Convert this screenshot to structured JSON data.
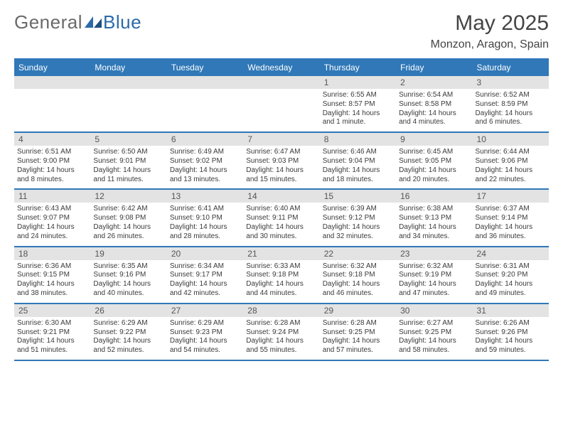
{
  "logo": {
    "text_general": "General",
    "text_blue": "Blue"
  },
  "header": {
    "title": "May 2025",
    "location": "Monzon, Aragon, Spain"
  },
  "colors": {
    "header_bar": "#3078b8",
    "daynum_bg": "#e3e3e3",
    "text": "#3a3a3a",
    "title_text": "#444444",
    "logo_gray": "#6a6a6a",
    "logo_blue": "#2b6aa8",
    "white": "#ffffff"
  },
  "typography": {
    "title_fontsize": 30,
    "subtitle_fontsize": 16,
    "weekday_fontsize": 12,
    "daynum_fontsize": 12,
    "body_fontsize": 10
  },
  "weekdays": [
    "Sunday",
    "Monday",
    "Tuesday",
    "Wednesday",
    "Thursday",
    "Friday",
    "Saturday"
  ],
  "weeks": [
    [
      {
        "empty": true
      },
      {
        "empty": true
      },
      {
        "empty": true
      },
      {
        "empty": true
      },
      {
        "day": "1",
        "sunrise": "Sunrise: 6:55 AM",
        "sunset": "Sunset: 8:57 PM",
        "daylight": "Daylight: 14 hours and 1 minute."
      },
      {
        "day": "2",
        "sunrise": "Sunrise: 6:54 AM",
        "sunset": "Sunset: 8:58 PM",
        "daylight": "Daylight: 14 hours and 4 minutes."
      },
      {
        "day": "3",
        "sunrise": "Sunrise: 6:52 AM",
        "sunset": "Sunset: 8:59 PM",
        "daylight": "Daylight: 14 hours and 6 minutes."
      }
    ],
    [
      {
        "day": "4",
        "sunrise": "Sunrise: 6:51 AM",
        "sunset": "Sunset: 9:00 PM",
        "daylight": "Daylight: 14 hours and 8 minutes."
      },
      {
        "day": "5",
        "sunrise": "Sunrise: 6:50 AM",
        "sunset": "Sunset: 9:01 PM",
        "daylight": "Daylight: 14 hours and 11 minutes."
      },
      {
        "day": "6",
        "sunrise": "Sunrise: 6:49 AM",
        "sunset": "Sunset: 9:02 PM",
        "daylight": "Daylight: 14 hours and 13 minutes."
      },
      {
        "day": "7",
        "sunrise": "Sunrise: 6:47 AM",
        "sunset": "Sunset: 9:03 PM",
        "daylight": "Daylight: 14 hours and 15 minutes."
      },
      {
        "day": "8",
        "sunrise": "Sunrise: 6:46 AM",
        "sunset": "Sunset: 9:04 PM",
        "daylight": "Daylight: 14 hours and 18 minutes."
      },
      {
        "day": "9",
        "sunrise": "Sunrise: 6:45 AM",
        "sunset": "Sunset: 9:05 PM",
        "daylight": "Daylight: 14 hours and 20 minutes."
      },
      {
        "day": "10",
        "sunrise": "Sunrise: 6:44 AM",
        "sunset": "Sunset: 9:06 PM",
        "daylight": "Daylight: 14 hours and 22 minutes."
      }
    ],
    [
      {
        "day": "11",
        "sunrise": "Sunrise: 6:43 AM",
        "sunset": "Sunset: 9:07 PM",
        "daylight": "Daylight: 14 hours and 24 minutes."
      },
      {
        "day": "12",
        "sunrise": "Sunrise: 6:42 AM",
        "sunset": "Sunset: 9:08 PM",
        "daylight": "Daylight: 14 hours and 26 minutes."
      },
      {
        "day": "13",
        "sunrise": "Sunrise: 6:41 AM",
        "sunset": "Sunset: 9:10 PM",
        "daylight": "Daylight: 14 hours and 28 minutes."
      },
      {
        "day": "14",
        "sunrise": "Sunrise: 6:40 AM",
        "sunset": "Sunset: 9:11 PM",
        "daylight": "Daylight: 14 hours and 30 minutes."
      },
      {
        "day": "15",
        "sunrise": "Sunrise: 6:39 AM",
        "sunset": "Sunset: 9:12 PM",
        "daylight": "Daylight: 14 hours and 32 minutes."
      },
      {
        "day": "16",
        "sunrise": "Sunrise: 6:38 AM",
        "sunset": "Sunset: 9:13 PM",
        "daylight": "Daylight: 14 hours and 34 minutes."
      },
      {
        "day": "17",
        "sunrise": "Sunrise: 6:37 AM",
        "sunset": "Sunset: 9:14 PM",
        "daylight": "Daylight: 14 hours and 36 minutes."
      }
    ],
    [
      {
        "day": "18",
        "sunrise": "Sunrise: 6:36 AM",
        "sunset": "Sunset: 9:15 PM",
        "daylight": "Daylight: 14 hours and 38 minutes."
      },
      {
        "day": "19",
        "sunrise": "Sunrise: 6:35 AM",
        "sunset": "Sunset: 9:16 PM",
        "daylight": "Daylight: 14 hours and 40 minutes."
      },
      {
        "day": "20",
        "sunrise": "Sunrise: 6:34 AM",
        "sunset": "Sunset: 9:17 PM",
        "daylight": "Daylight: 14 hours and 42 minutes."
      },
      {
        "day": "21",
        "sunrise": "Sunrise: 6:33 AM",
        "sunset": "Sunset: 9:18 PM",
        "daylight": "Daylight: 14 hours and 44 minutes."
      },
      {
        "day": "22",
        "sunrise": "Sunrise: 6:32 AM",
        "sunset": "Sunset: 9:18 PM",
        "daylight": "Daylight: 14 hours and 46 minutes."
      },
      {
        "day": "23",
        "sunrise": "Sunrise: 6:32 AM",
        "sunset": "Sunset: 9:19 PM",
        "daylight": "Daylight: 14 hours and 47 minutes."
      },
      {
        "day": "24",
        "sunrise": "Sunrise: 6:31 AM",
        "sunset": "Sunset: 9:20 PM",
        "daylight": "Daylight: 14 hours and 49 minutes."
      }
    ],
    [
      {
        "day": "25",
        "sunrise": "Sunrise: 6:30 AM",
        "sunset": "Sunset: 9:21 PM",
        "daylight": "Daylight: 14 hours and 51 minutes."
      },
      {
        "day": "26",
        "sunrise": "Sunrise: 6:29 AM",
        "sunset": "Sunset: 9:22 PM",
        "daylight": "Daylight: 14 hours and 52 minutes."
      },
      {
        "day": "27",
        "sunrise": "Sunrise: 6:29 AM",
        "sunset": "Sunset: 9:23 PM",
        "daylight": "Daylight: 14 hours and 54 minutes."
      },
      {
        "day": "28",
        "sunrise": "Sunrise: 6:28 AM",
        "sunset": "Sunset: 9:24 PM",
        "daylight": "Daylight: 14 hours and 55 minutes."
      },
      {
        "day": "29",
        "sunrise": "Sunrise: 6:28 AM",
        "sunset": "Sunset: 9:25 PM",
        "daylight": "Daylight: 14 hours and 57 minutes."
      },
      {
        "day": "30",
        "sunrise": "Sunrise: 6:27 AM",
        "sunset": "Sunset: 9:25 PM",
        "daylight": "Daylight: 14 hours and 58 minutes."
      },
      {
        "day": "31",
        "sunrise": "Sunrise: 6:26 AM",
        "sunset": "Sunset: 9:26 PM",
        "daylight": "Daylight: 14 hours and 59 minutes."
      }
    ]
  ]
}
